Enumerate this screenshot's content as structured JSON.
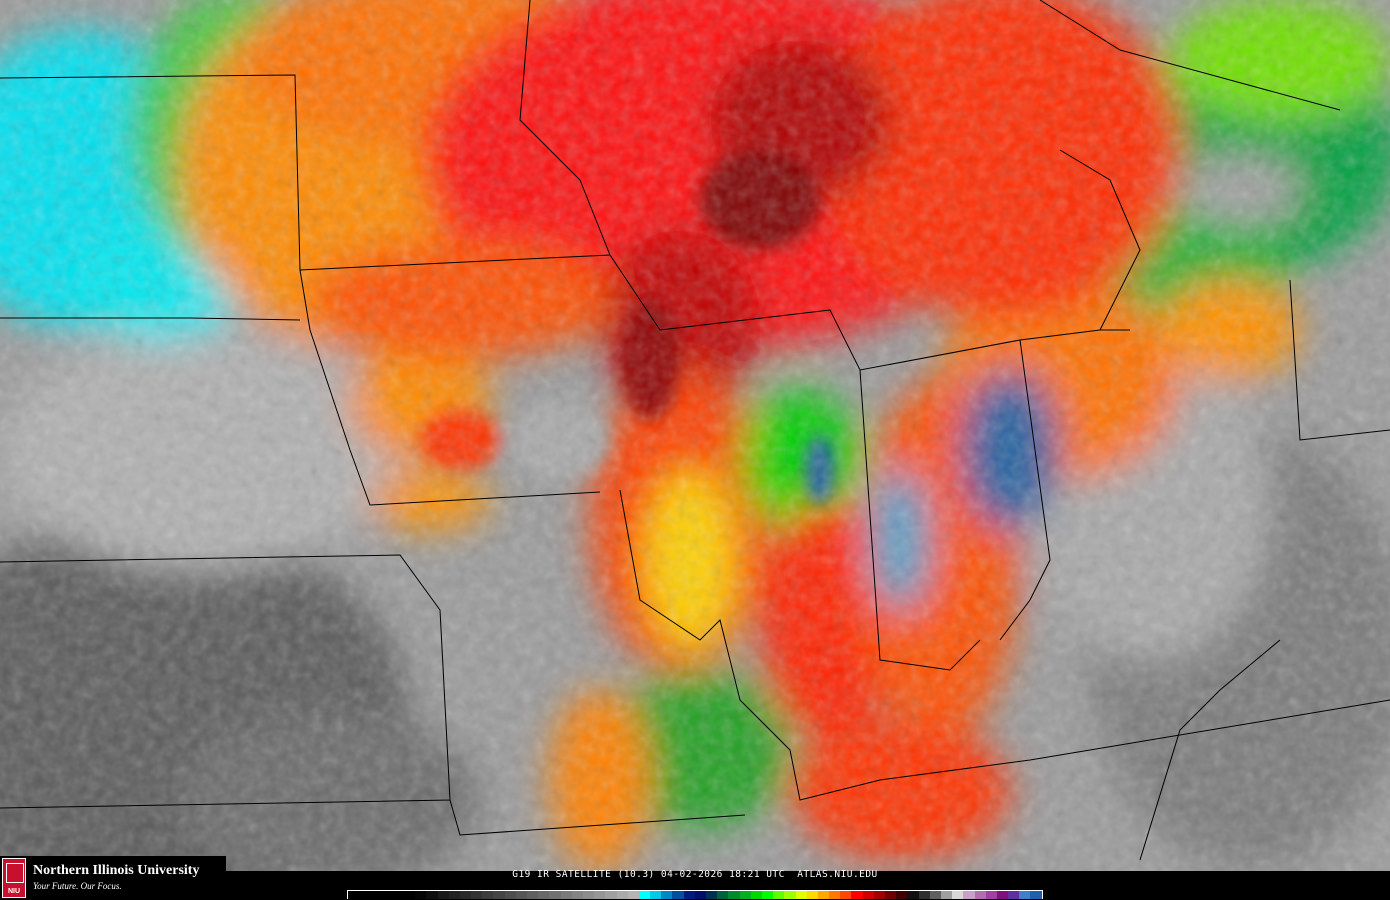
{
  "caption": "G19 IR SATELLITE (10.3) 04-02-2026 18:21 UTC  ATLAS.NIU.EDU",
  "logo": {
    "university": "Northern Illinois University",
    "tagline": "Your Future. Our Focus.",
    "seal_text": "NIU"
  },
  "colorbar": [
    "#000000",
    "#000000",
    "#000000",
    "#000000",
    "#000000",
    "#000000",
    "#050505",
    "#0e0e0e",
    "#1a1a1a",
    "#222222",
    "#2a2a2a",
    "#333333",
    "#3c3c3c",
    "#454545",
    "#4e4e4e",
    "#575757",
    "#606060",
    "#696969",
    "#727272",
    "#7b7b7b",
    "#848484",
    "#8d8d8d",
    "#969696",
    "#a0a0a0",
    "#aaaaaa",
    "#b4b4b4",
    "#00ffff",
    "#00c8e8",
    "#0088c8",
    "#0050a0",
    "#001a80",
    "#00106a",
    "#003050",
    "#006040",
    "#008a30",
    "#00b020",
    "#00d800",
    "#00ff00",
    "#60ff00",
    "#a0ff00",
    "#e0ff00",
    "#ffd800",
    "#ffa800",
    "#ff7800",
    "#ff4800",
    "#ff0000",
    "#d00000",
    "#a00000",
    "#700000",
    "#400000",
    "#101010",
    "#303030",
    "#606060",
    "#a0a0a0",
    "#d8d8d8",
    "#c8a0c8",
    "#b070b0",
    "#a040a0",
    "#801080",
    "#6030a0",
    "#4080c8",
    "#2060b0"
  ]
}
